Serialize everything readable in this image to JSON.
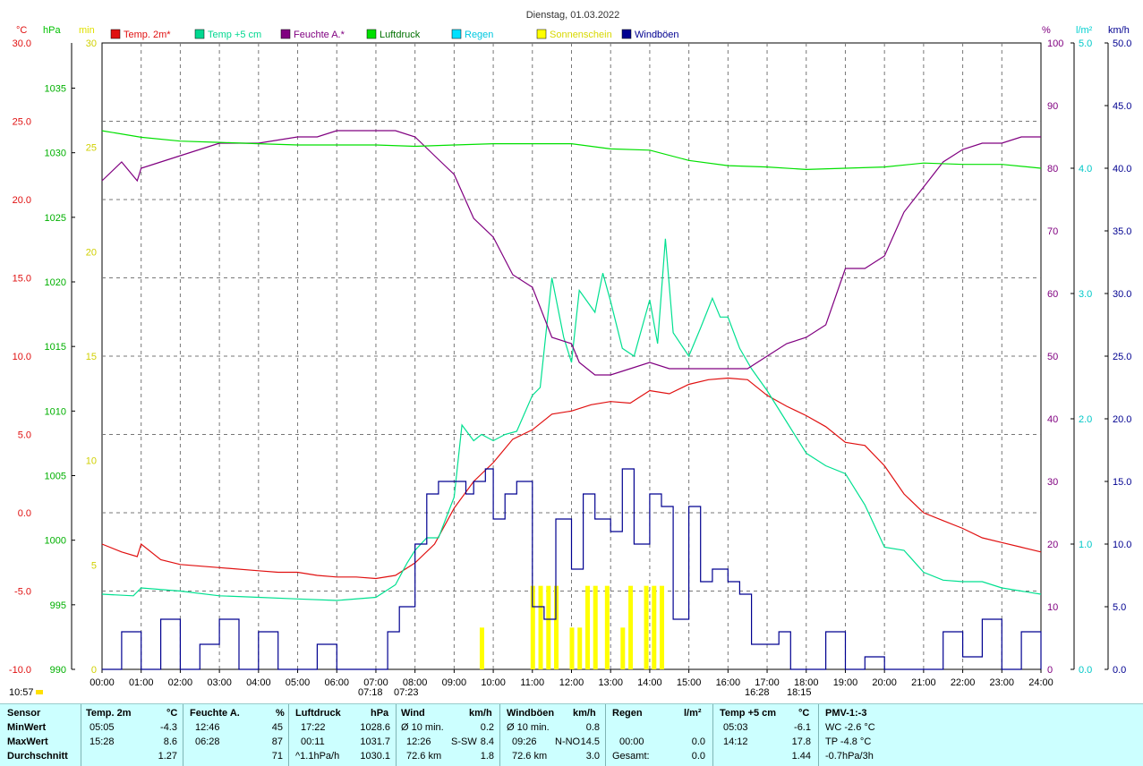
{
  "title": "Dienstag, 01.03.2022",
  "axes": {
    "temp_unit": "°C",
    "pressure_unit": "hPa",
    "sun_unit": "min",
    "humidity_unit": "%",
    "rain_unit": "l/m²",
    "wind_unit": "km/h",
    "temp_ticks": [
      "30.0",
      "25.0",
      "20.0",
      "15.0",
      "10.0",
      "5.0",
      "0.0",
      "-5.0",
      "-10.0"
    ],
    "pressure_ticks": [
      "1035",
      "1030",
      "1025",
      "1020",
      "1015",
      "1010",
      "1005",
      "1000",
      "995",
      "990"
    ],
    "sun_ticks": [
      "30",
      "25",
      "20",
      "15",
      "10",
      "5",
      "0"
    ],
    "humidity_ticks": [
      "100",
      "90",
      "80",
      "70",
      "60",
      "50",
      "40",
      "30",
      "20",
      "10",
      "0"
    ],
    "rain_ticks": [
      "5.0",
      "4.0",
      "3.0",
      "2.0",
      "1.0",
      "0.0"
    ],
    "wind_ticks": [
      "50.0",
      "45.0",
      "40.0",
      "35.0",
      "30.0",
      "25.0",
      "20.0",
      "15.0",
      "10.0",
      "5.0",
      "0.0"
    ],
    "time_ticks": [
      "00:00",
      "01:00",
      "02:00",
      "03:00",
      "04:00",
      "05:00",
      "06:00",
      "07:00",
      "08:00",
      "09:00",
      "10:00",
      "11:00",
      "12:00",
      "13:00",
      "14:00",
      "15:00",
      "16:00",
      "17:00",
      "18:00",
      "19:00",
      "20:00",
      "21:00",
      "22:00",
      "23:00",
      "24:00"
    ]
  },
  "legend": [
    {
      "label": "Temp. 2m*",
      "color": "#e01010"
    },
    {
      "label": "Temp +5 cm",
      "color": "#00d890"
    },
    {
      "label": "Feuchte A.*",
      "color": "#800080"
    },
    {
      "label": "Luftdruck",
      "color": "#00e000"
    },
    {
      "label": "Regen",
      "color": "#00e0ff"
    },
    {
      "label": "Sonnenschein",
      "color": "#ffff00"
    },
    {
      "label": "Windböen",
      "color": "#000090"
    }
  ],
  "annotations": {
    "timestamp": "10:57",
    "sunrise": "07:18",
    "sunset_mark": "07:23",
    "wind_peak_time": "16:28",
    "sunset": "18:15"
  },
  "chart_data": {
    "type": "line",
    "x_unit": "hours",
    "x_range": [
      0,
      24
    ],
    "series": [
      {
        "name": "Temp. 2m*",
        "axis": "°C",
        "range": [
          -10,
          30
        ],
        "x": [
          0,
          0.5,
          0.9,
          1,
          1.5,
          2,
          3,
          4,
          4.5,
          5,
          5.5,
          6,
          6.5,
          7,
          7.5,
          8,
          8.5,
          9,
          9.5,
          10,
          10.5,
          11,
          11.5,
          12,
          12.5,
          13,
          13.5,
          14,
          14.5,
          15,
          15.5,
          16,
          16.5,
          17,
          17.5,
          18,
          18.5,
          19,
          19.5,
          20,
          20.5,
          21,
          21.5,
          22,
          22.5,
          23,
          23.5,
          24
        ],
        "y": [
          -2.0,
          -2.5,
          -2.8,
          -2.0,
          -3.0,
          -3.3,
          -3.5,
          -3.7,
          -3.8,
          -3.8,
          -4.0,
          -4.1,
          -4.1,
          -4.2,
          -4.0,
          -3.2,
          -2.0,
          0.3,
          2.0,
          3.2,
          4.7,
          5.3,
          6.3,
          6.5,
          6.9,
          7.1,
          7.0,
          7.8,
          7.6,
          8.2,
          8.5,
          8.6,
          8.5,
          7.5,
          6.8,
          6.2,
          5.5,
          4.5,
          4.3,
          3.0,
          1.2,
          0.0,
          -0.5,
          -1.0,
          -1.6,
          -1.9,
          -2.2,
          -2.5
        ]
      },
      {
        "name": "Temp +5 cm",
        "axis": "°C",
        "range": [
          -10,
          30
        ],
        "x": [
          0,
          0.8,
          1,
          2,
          3,
          4,
          5,
          6,
          7,
          7.5,
          7.8,
          8,
          8.3,
          8.6,
          9,
          9.2,
          9.5,
          9.7,
          10,
          10.3,
          10.6,
          11,
          11.2,
          11.5,
          11.8,
          12,
          12.2,
          12.6,
          12.8,
          13,
          13.3,
          13.6,
          14,
          14.2,
          14.4,
          14.6,
          15,
          15.3,
          15.6,
          15.8,
          16,
          16.3,
          16.6,
          17,
          17.5,
          18,
          18.5,
          19,
          19.5,
          20,
          20.5,
          21,
          21.5,
          22,
          22.5,
          23,
          23.5,
          24
        ],
        "y": [
          -5.2,
          -5.3,
          -4.8,
          -5.0,
          -5.3,
          -5.4,
          -5.5,
          -5.6,
          -5.4,
          -4.6,
          -3.2,
          -2.4,
          -1.6,
          -1.6,
          1.0,
          5.6,
          4.6,
          5.0,
          4.6,
          5.0,
          5.2,
          7.5,
          8.0,
          15.0,
          11.2,
          9.6,
          14.2,
          12.8,
          15.3,
          13.5,
          10.5,
          10.0,
          13.6,
          10.8,
          17.5,
          11.5,
          10.0,
          11.8,
          13.7,
          12.5,
          12.5,
          10.5,
          9.2,
          7.8,
          5.8,
          3.8,
          3.0,
          2.5,
          0.5,
          -2.2,
          -2.4,
          -3.8,
          -4.3,
          -4.4,
          -4.4,
          -4.8,
          -5.0,
          -5.2
        ]
      },
      {
        "name": "Feuchte A.*",
        "axis": "%",
        "range": [
          0,
          100
        ],
        "x": [
          0,
          0.5,
          0.9,
          1,
          1.5,
          2,
          3,
          4,
          5,
          5.5,
          6,
          6.5,
          7,
          7.5,
          8,
          8.5,
          9,
          9.5,
          10,
          10.5,
          11,
          11.5,
          12,
          12.2,
          12.6,
          13,
          13.5,
          14,
          14.5,
          15,
          15.5,
          16,
          16.5,
          17,
          17.5,
          18,
          18.5,
          19,
          19.5,
          20,
          20.5,
          21,
          21.5,
          22,
          22.5,
          23,
          23.5,
          24
        ],
        "y": [
          78,
          81,
          78,
          80,
          81,
          82,
          84,
          84,
          85,
          85,
          86,
          86,
          86,
          86,
          85,
          82,
          79,
          72,
          69,
          63,
          61,
          53,
          52,
          49,
          47,
          47,
          48,
          49,
          48,
          48,
          48,
          48,
          48,
          50,
          52,
          53,
          55,
          64,
          64,
          66,
          73,
          77,
          81,
          83,
          84,
          84,
          85,
          85
        ]
      },
      {
        "name": "Luftdruck",
        "axis": "hPa",
        "range": [
          990,
          1038.5
        ],
        "x": [
          0,
          1,
          2,
          3,
          4,
          5,
          6,
          7,
          8,
          9,
          10,
          11,
          12,
          13,
          14,
          15,
          16,
          17,
          18,
          19,
          20,
          21,
          22,
          23,
          24
        ],
        "y": [
          1031.7,
          1031.2,
          1030.9,
          1030.8,
          1030.7,
          1030.6,
          1030.6,
          1030.6,
          1030.5,
          1030.6,
          1030.7,
          1030.7,
          1030.7,
          1030.3,
          1030.2,
          1029.4,
          1029.0,
          1028.9,
          1028.7,
          1028.8,
          1028.9,
          1029.2,
          1029.1,
          1029.1,
          1028.8
        ]
      },
      {
        "name": "Windböen",
        "axis": "km/h",
        "range": [
          0,
          50
        ],
        "x": [
          0,
          0.5,
          1,
          1.5,
          2,
          2.5,
          3,
          3.5,
          4,
          4.5,
          5,
          5.5,
          6,
          6.5,
          7,
          7.3,
          7.6,
          8,
          8.3,
          8.6,
          9,
          9.3,
          9.5,
          9.8,
          10,
          10.3,
          10.6,
          11,
          11.3,
          11.6,
          12,
          12.3,
          12.6,
          13,
          13.3,
          13.6,
          14,
          14.3,
          14.6,
          15,
          15.3,
          15.6,
          16,
          16.3,
          16.6,
          17,
          17.3,
          17.6,
          18,
          18.5,
          19,
          19.5,
          20,
          20.5,
          21,
          21.5,
          22,
          22.5,
          23,
          23.5,
          24
        ],
        "y": [
          0,
          3,
          0,
          4,
          0,
          2,
          4,
          0,
          3,
          0,
          0,
          2,
          0,
          0,
          0,
          3,
          5,
          10,
          14,
          15,
          15,
          14,
          15,
          16,
          12,
          14,
          15,
          5,
          4,
          12,
          8,
          14,
          12,
          11,
          16,
          10,
          14,
          13,
          4,
          13,
          7,
          8,
          7,
          6,
          2,
          2,
          3,
          0,
          0,
          3,
          0,
          1,
          0,
          0,
          0,
          3,
          1,
          4,
          0,
          3,
          0
        ]
      },
      {
        "name": "Sonnenschein",
        "axis": "min",
        "range": [
          0,
          30
        ],
        "x": [
          9.7,
          11.0,
          11.2,
          11.4,
          11.6,
          12.0,
          12.2,
          12.4,
          12.6,
          12.9,
          13.3,
          13.5,
          13.9,
          14.1,
          14.3
        ],
        "y": [
          2,
          4,
          4,
          4,
          4,
          2,
          2,
          4,
          4,
          4,
          2,
          4,
          4,
          4,
          4
        ]
      }
    ],
    "stats": {
      "headers": {
        "sensor": "Sensor",
        "temp2m": "Temp. 2m",
        "temp2m_unit": "°C",
        "hum": "Feuchte A.",
        "hum_unit": "%",
        "press": "Luftdruck",
        "press_unit": "hPa",
        "wind": "Wind",
        "wind_unit": "km/h",
        "gust": "Windböen",
        "gust_unit": "km/h",
        "rain": "Regen",
        "rain_unit": "l/m²",
        "temp5": "Temp +5 cm",
        "temp5_unit": "°C",
        "pmv": "PMV-1:-3"
      },
      "rows": [
        {
          "label": "MinWert",
          "temp2m_time": "05:05",
          "temp2m_val": "-4.3",
          "hum_time": "12:46",
          "hum_val": "45",
          "press_time": "17:22",
          "press_val": "1028.6",
          "wind_a": "Ø 10 min.",
          "wind_val": "0.2",
          "gust_a": "Ø 10 min.",
          "gust_val": "0.8",
          "rain_a": "",
          "rain_val": "",
          "temp5_time": "05:03",
          "temp5_val": "-6.1",
          "pmv": "WC -2.6 °C"
        },
        {
          "label": "MaxWert",
          "temp2m_time": "15:28",
          "temp2m_val": "8.6",
          "hum_time": "06:28",
          "hum_val": "87",
          "press_time": "00:11",
          "press_val": "1031.7",
          "wind_a": "12:26",
          "wind_b": "S-SW",
          "wind_val": "8.4",
          "gust_a": "09:26",
          "gust_b": "N-NO",
          "gust_val": "14.5",
          "rain_a": "00:00",
          "rain_val": "0.0",
          "temp5_time": "14:12",
          "temp5_val": "17.8",
          "pmv": "TP -4.8 °C"
        },
        {
          "label": "Durchschnitt",
          "temp2m_time": "",
          "temp2m_val": "1.27",
          "hum_time": "",
          "hum_val": "71",
          "press_time": "^1.1hPa/h",
          "press_val": "1030.1",
          "wind_a": "72.6 km",
          "wind_val": "1.8",
          "gust_a": "72.6 km",
          "gust_val": "3.0",
          "rain_a": "Gesamt:",
          "rain_val": "0.0",
          "temp5_time": "",
          "temp5_val": "1.44",
          "pmv": "-0.7hPa/3h"
        }
      ]
    }
  }
}
